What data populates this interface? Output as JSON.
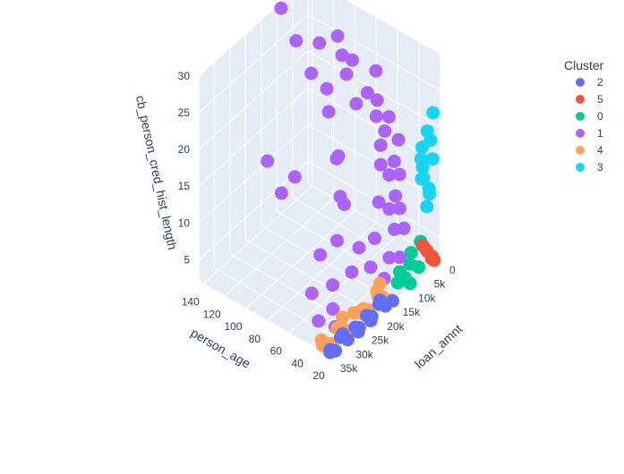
{
  "chart_data": {
    "type": "scatter3d",
    "scene": {
      "x_axis": {
        "title": "loan_amnt",
        "ticks": [
          "0",
          "5k",
          "10k",
          "15k",
          "20k",
          "25k",
          "30k",
          "35k"
        ],
        "range": [
          0,
          35000
        ]
      },
      "y_axis": {
        "title": "person_age",
        "ticks": [
          "20",
          "40",
          "60",
          "80",
          "100",
          "120",
          "140"
        ],
        "range": [
          20,
          144
        ]
      },
      "z_axis": {
        "title": "cb_person_cred_hist_length",
        "ticks": [
          "5",
          "10",
          "15",
          "20",
          "25",
          "30"
        ],
        "range": [
          2,
          30
        ]
      },
      "background": "#e5ecf6",
      "grid": true
    },
    "legend": {
      "title": "Cluster",
      "placement": "top-right",
      "items": [
        {
          "label": "2",
          "color": "#636efa"
        },
        {
          "label": "5",
          "color": "#ef553b"
        },
        {
          "label": "0",
          "color": "#00cc96"
        },
        {
          "label": "1",
          "color": "#ab63fa"
        },
        {
          "label": "4",
          "color": "#ffa15a"
        },
        {
          "label": "3",
          "color": "#19d3f3"
        }
      ]
    },
    "series": [
      {
        "name": "3",
        "color": "#19d3f3",
        "points": [
          [
            3000,
            24,
            10
          ],
          [
            2000,
            25,
            12
          ],
          [
            4000,
            26,
            14
          ],
          [
            1500,
            23,
            16
          ],
          [
            3500,
            27,
            18
          ],
          [
            2500,
            25,
            20
          ],
          [
            1000,
            24,
            22
          ],
          [
            2000,
            30,
            13
          ],
          [
            3000,
            28,
            15
          ],
          [
            1500,
            26,
            11
          ],
          [
            4500,
            25,
            17
          ],
          [
            2500,
            22,
            19
          ]
        ]
      },
      {
        "name": "0",
        "color": "#00cc96",
        "points": [
          [
            6000,
            23,
            3
          ],
          [
            8000,
            25,
            4
          ],
          [
            10000,
            24,
            3
          ],
          [
            7000,
            27,
            5
          ],
          [
            9000,
            22,
            2
          ],
          [
            11000,
            26,
            4
          ],
          [
            5000,
            24,
            6
          ],
          [
            12000,
            25,
            3
          ]
        ]
      },
      {
        "name": "5",
        "color": "#ef553b",
        "points": [
          [
            2000,
            22,
            3
          ],
          [
            3000,
            24,
            4
          ],
          [
            1000,
            23,
            2
          ],
          [
            4000,
            25,
            5
          ],
          [
            2500,
            21,
            3
          ]
        ]
      },
      {
        "name": "1",
        "color": "#ab63fa",
        "points": [
          [
            10000,
            140,
            30
          ],
          [
            12000,
            120,
            28
          ],
          [
            8000,
            110,
            27
          ],
          [
            14000,
            100,
            26
          ],
          [
            9000,
            90,
            30
          ],
          [
            11000,
            80,
            29
          ],
          [
            13000,
            70,
            28
          ],
          [
            7000,
            60,
            27
          ],
          [
            15000,
            55,
            26
          ],
          [
            10000,
            50,
            25
          ],
          [
            12000,
            45,
            24
          ],
          [
            9000,
            42,
            23
          ],
          [
            11000,
            40,
            22
          ],
          [
            13000,
            38,
            21
          ],
          [
            8000,
            36,
            20
          ],
          [
            14000,
            35,
            19
          ],
          [
            10000,
            34,
            18
          ],
          [
            12000,
            33,
            17
          ],
          [
            9000,
            32,
            16
          ],
          [
            16000,
            31,
            15
          ],
          [
            11000,
            30,
            14
          ],
          [
            13000,
            30,
            13
          ],
          [
            10000,
            29,
            12
          ],
          [
            18000,
            29,
            11
          ],
          [
            12000,
            28,
            10
          ],
          [
            9000,
            28,
            9
          ],
          [
            20000,
            27,
            8
          ],
          [
            14000,
            27,
            7
          ],
          [
            11000,
            26,
            6
          ],
          [
            16000,
            26,
            5
          ],
          [
            25000,
            30,
            9
          ],
          [
            22000,
            32,
            11
          ],
          [
            28000,
            35,
            14
          ],
          [
            24000,
            40,
            17
          ],
          [
            30000,
            45,
            12
          ],
          [
            19000,
            60,
            20
          ],
          [
            17000,
            75,
            24
          ],
          [
            21000,
            95,
            15
          ],
          [
            15000,
            125,
            8
          ],
          [
            13000,
            144,
            10
          ],
          [
            23000,
            50,
            22
          ],
          [
            26000,
            38,
            19
          ],
          [
            33000,
            44,
            8
          ],
          [
            35000,
            32,
            6
          ],
          [
            31000,
            28,
            4
          ],
          [
            29000,
            36,
            5
          ],
          [
            27000,
            42,
            7
          ],
          [
            8000,
            65,
            24
          ],
          [
            6000,
            85,
            26
          ],
          [
            9000,
            100,
            22
          ]
        ]
      },
      {
        "name": "4",
        "color": "#ffa15a",
        "points": [
          [
            15000,
            22,
            2
          ],
          [
            17000,
            24,
            3
          ],
          [
            19000,
            23,
            4
          ],
          [
            21000,
            25,
            2
          ],
          [
            23000,
            26,
            3
          ],
          [
            25000,
            24,
            4
          ],
          [
            27000,
            27,
            2
          ],
          [
            29000,
            25,
            3
          ],
          [
            31000,
            26,
            4
          ],
          [
            33000,
            24,
            2
          ],
          [
            35000,
            28,
            3
          ],
          [
            16000,
            30,
            4
          ],
          [
            20000,
            29,
            2
          ],
          [
            24000,
            31,
            3
          ],
          [
            28000,
            30,
            4
          ],
          [
            32000,
            29,
            2
          ],
          [
            34000,
            32,
            3
          ],
          [
            18000,
            27,
            4
          ],
          [
            22000,
            28,
            3
          ],
          [
            26000,
            23,
            2
          ]
        ]
      },
      {
        "name": "2",
        "color": "#636efa",
        "points": [
          [
            15000,
            21,
            2
          ],
          [
            17000,
            22,
            2
          ],
          [
            19000,
            22,
            3
          ],
          [
            21000,
            23,
            2
          ],
          [
            23000,
            22,
            3
          ],
          [
            25000,
            23,
            2
          ],
          [
            27000,
            21,
            3
          ],
          [
            29000,
            22,
            2
          ],
          [
            31000,
            23,
            3
          ],
          [
            33000,
            22,
            2
          ],
          [
            35000,
            21,
            3
          ],
          [
            34000,
            24,
            2
          ],
          [
            30000,
            24,
            3
          ],
          [
            26000,
            21,
            2
          ],
          [
            18000,
            24,
            3
          ],
          [
            22000,
            21,
            2
          ]
        ]
      }
    ]
  }
}
